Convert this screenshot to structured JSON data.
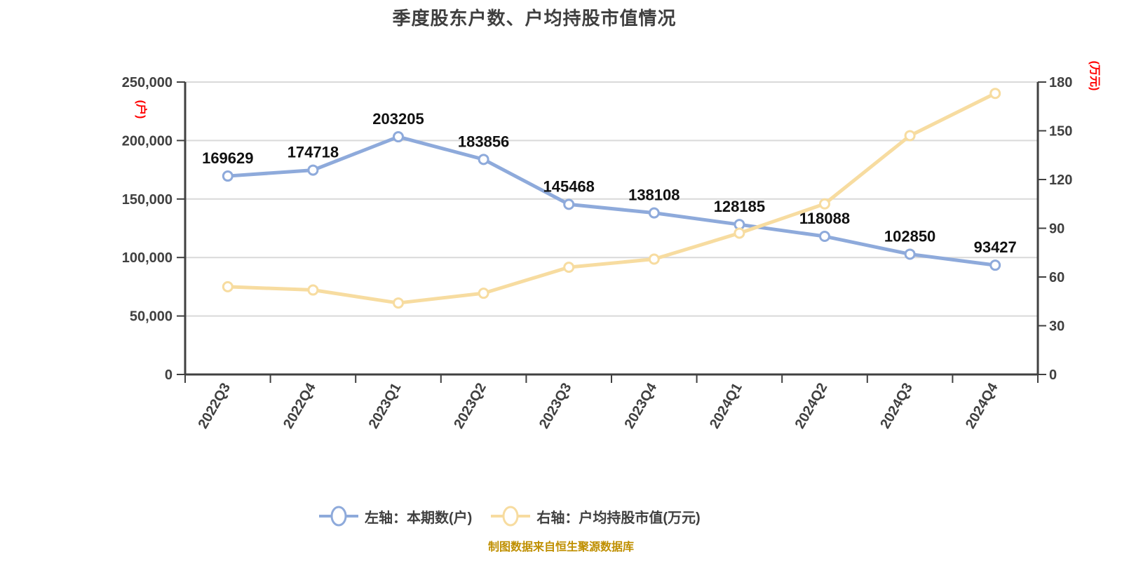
{
  "chart": {
    "title": "季度股东户数、户均持股市值情况",
    "footer": "制图数据来自恒生聚源数据库"
  },
  "legend": {
    "items": [
      {
        "label": "左轴：本期数(户)",
        "color": "#8EAADB"
      },
      {
        "label": "右轴：户均持股市值(万元)",
        "color": "#F7DCA0"
      }
    ]
  },
  "chart_data": {
    "type": "line",
    "title": "季度股东户数、户均持股市值情况",
    "categories": [
      "2022Q3",
      "2022Q4",
      "2023Q1",
      "2023Q2",
      "2023Q3",
      "2023Q4",
      "2024Q1",
      "2024Q2",
      "2024Q3",
      "2024Q4"
    ],
    "series": [
      {
        "name": "左轴：本期数(户)",
        "axis": "left",
        "color": "#8EAADB",
        "marker_fill": "#FFFFFF",
        "data_labels": true,
        "values": [
          169629,
          174718,
          203205,
          183856,
          145468,
          138108,
          128185,
          118088,
          102850,
          93427
        ]
      },
      {
        "name": "右轴：户均持股市值(万元)",
        "axis": "right",
        "color": "#F7DCA0",
        "marker_fill": "#FFFFFF",
        "data_labels": false,
        "values": [
          54,
          52,
          44,
          50,
          66,
          71,
          87,
          105,
          147,
          173
        ]
      }
    ],
    "left_axis": {
      "label": "(户)",
      "label_color": "#FF0000",
      "min": 0,
      "max": 250000,
      "step": 50000,
      "ticks": [
        "250,000",
        "200,000",
        "150,000",
        "100,000",
        "50,000",
        "0"
      ]
    },
    "right_axis": {
      "label": "(万元)",
      "label_color": "#FF0000",
      "min": 0,
      "max": 180,
      "step": 30,
      "ticks": [
        "180",
        "150",
        "120",
        "90",
        "60",
        "30",
        "0"
      ]
    },
    "grid": true,
    "legend_position": "bottom",
    "x_label_rotation": -60
  },
  "colors": {
    "grid": "#D9D9D9",
    "axis": "#404040",
    "tick_text": "#404040",
    "data_label": "#111111",
    "title": "#3F3F3F",
    "footer": "#BF8F00"
  }
}
